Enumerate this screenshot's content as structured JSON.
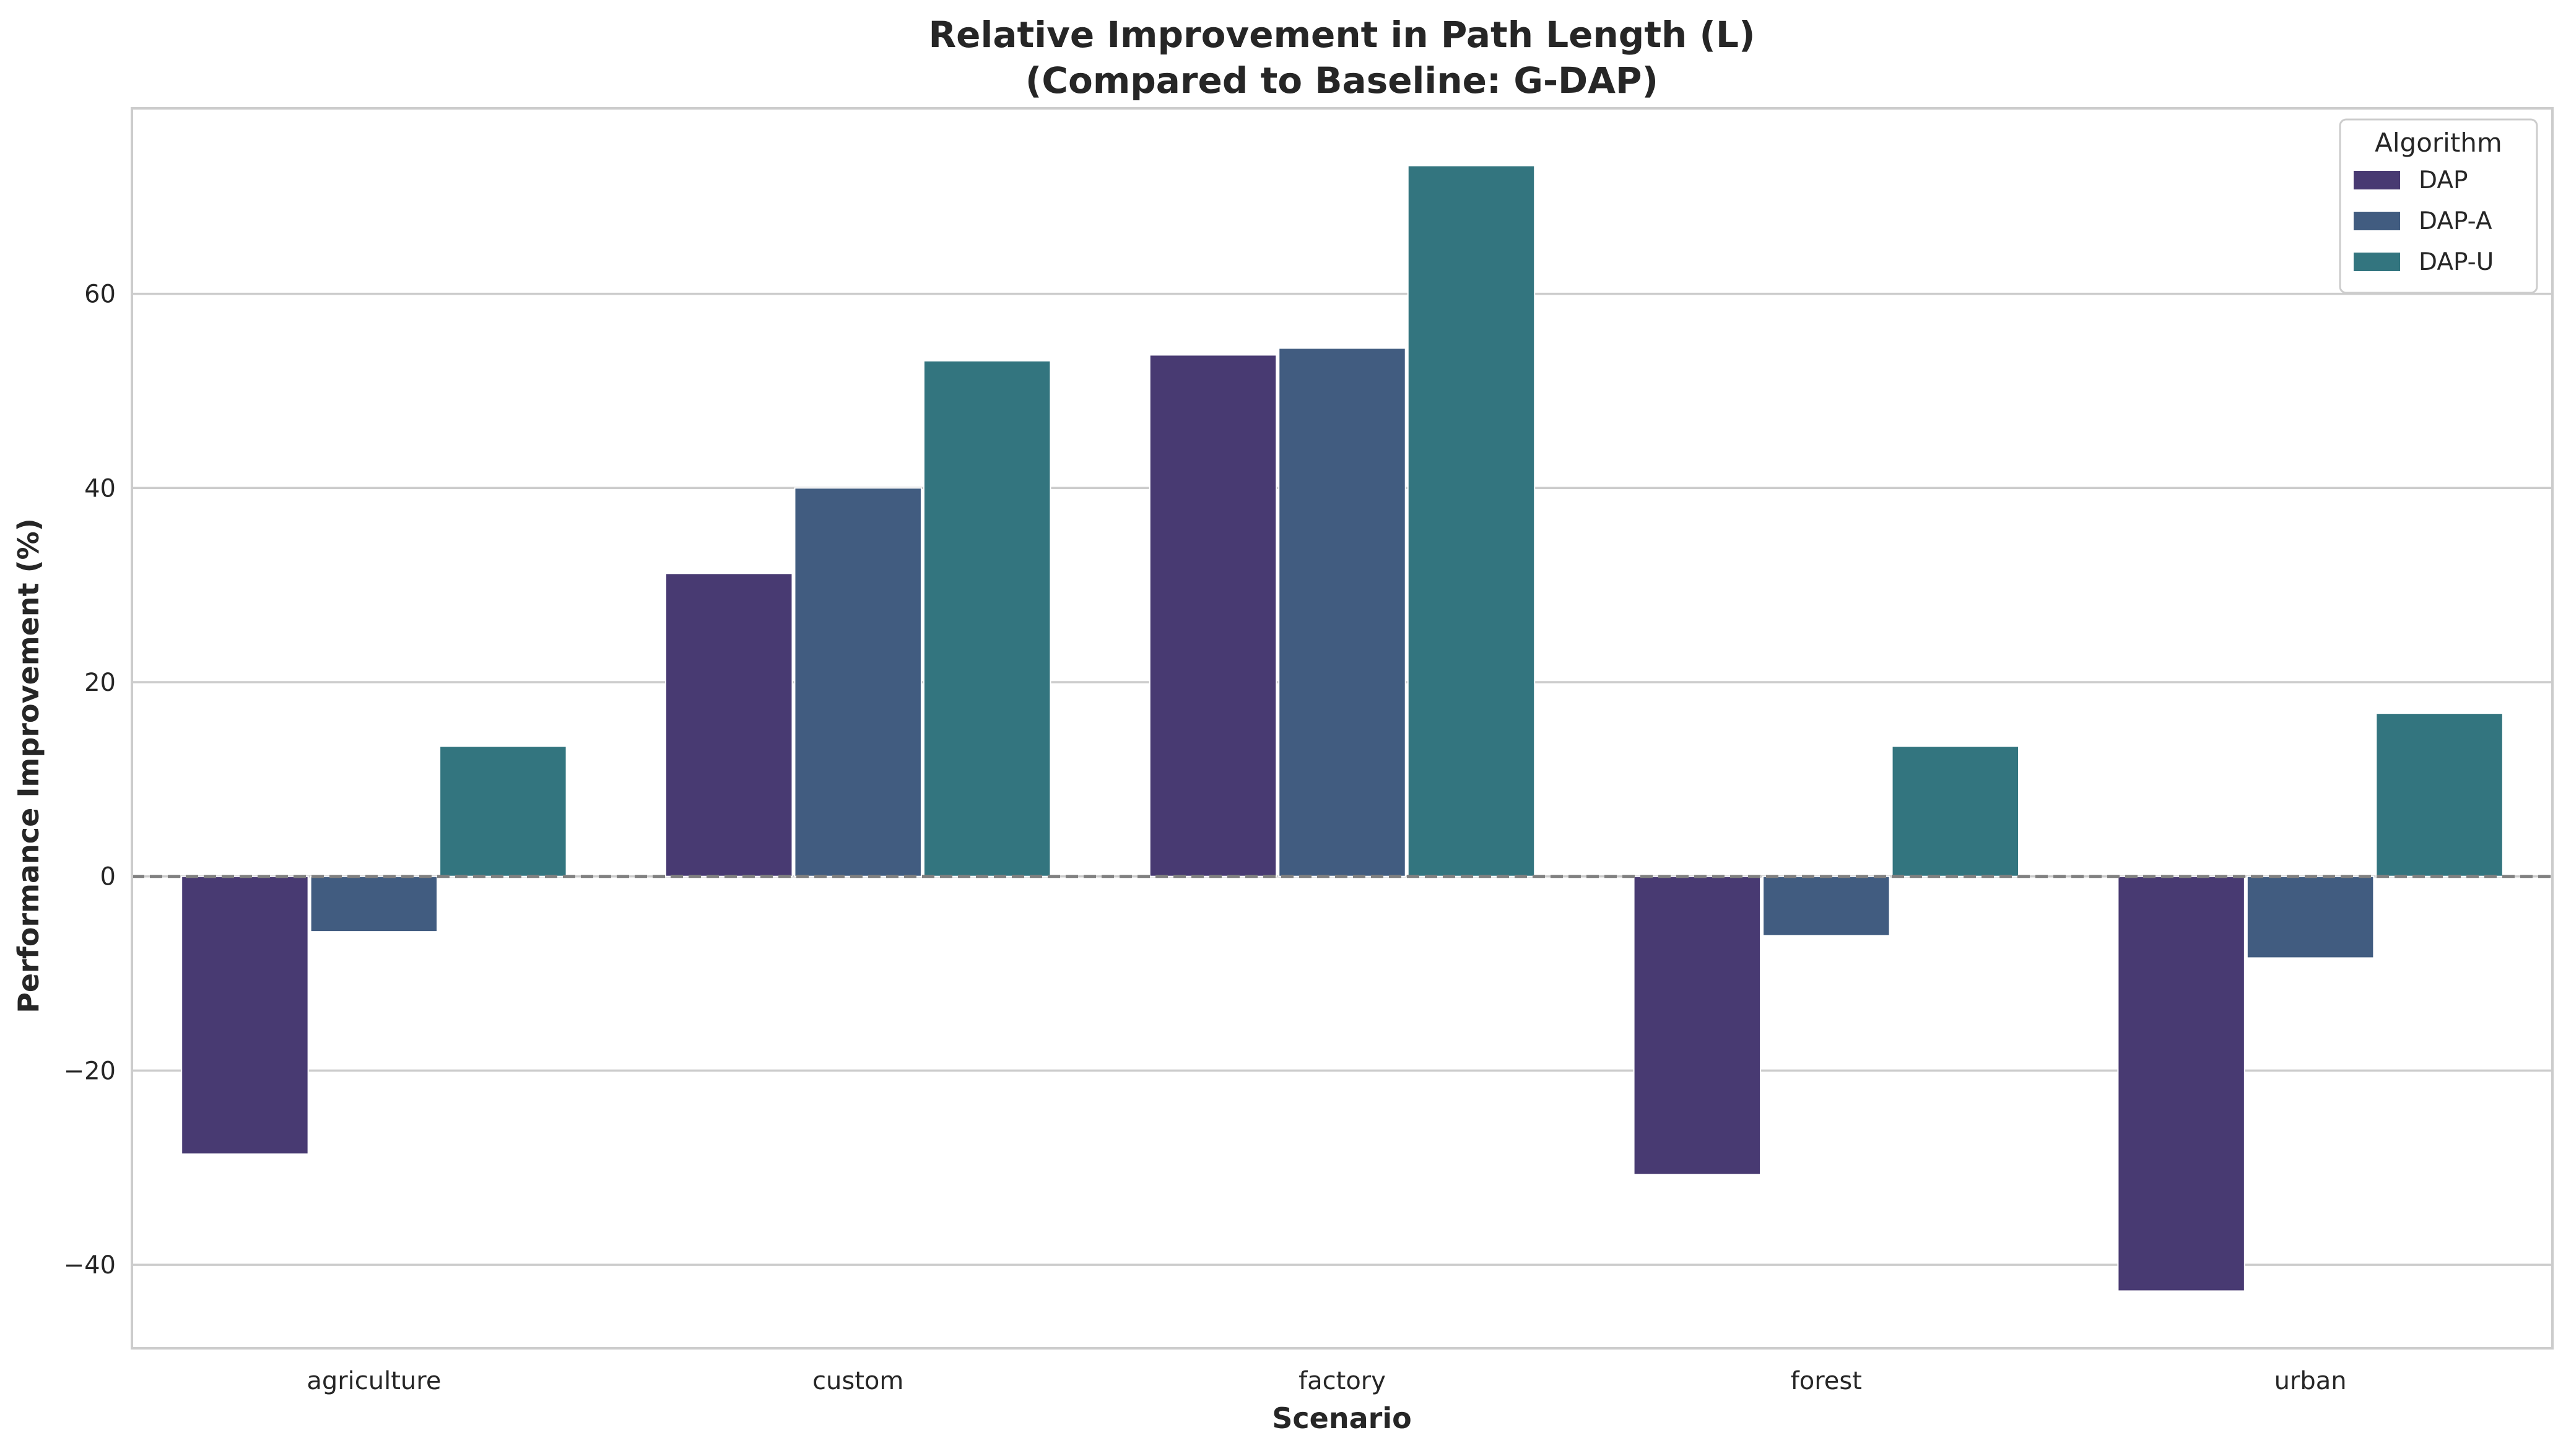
{
  "chart_data": {
    "type": "bar",
    "title": "Relative Improvement in Path Length (L)",
    "subtitle": "(Compared to Baseline: G-DAP)",
    "xlabel": "Scenario",
    "ylabel": "Performance Improvement (%)",
    "categories": [
      "agriculture",
      "custom",
      "factory",
      "forest",
      "urban"
    ],
    "series": [
      {
        "name": "DAP",
        "color": "#483a72",
        "values": [
          -28.6,
          31.2,
          53.7,
          -30.7,
          -42.7
        ]
      },
      {
        "name": "DAP-A",
        "color": "#415c80",
        "values": [
          -5.7,
          40.0,
          54.4,
          -6.1,
          -8.4
        ]
      },
      {
        "name": "DAP-U",
        "color": "#33757f",
        "values": [
          13.4,
          53.1,
          73.2,
          13.4,
          16.8
        ]
      }
    ],
    "ylim": [
      -48.6,
      79.1
    ],
    "yticks": [
      -40,
      -20,
      0,
      20,
      40,
      60
    ],
    "ytick_labels": [
      "−40",
      "−20",
      "0",
      "20",
      "40",
      "60"
    ],
    "reference_line": 0,
    "grid": true,
    "legend": {
      "title": "Algorithm",
      "position": "top-right"
    }
  }
}
